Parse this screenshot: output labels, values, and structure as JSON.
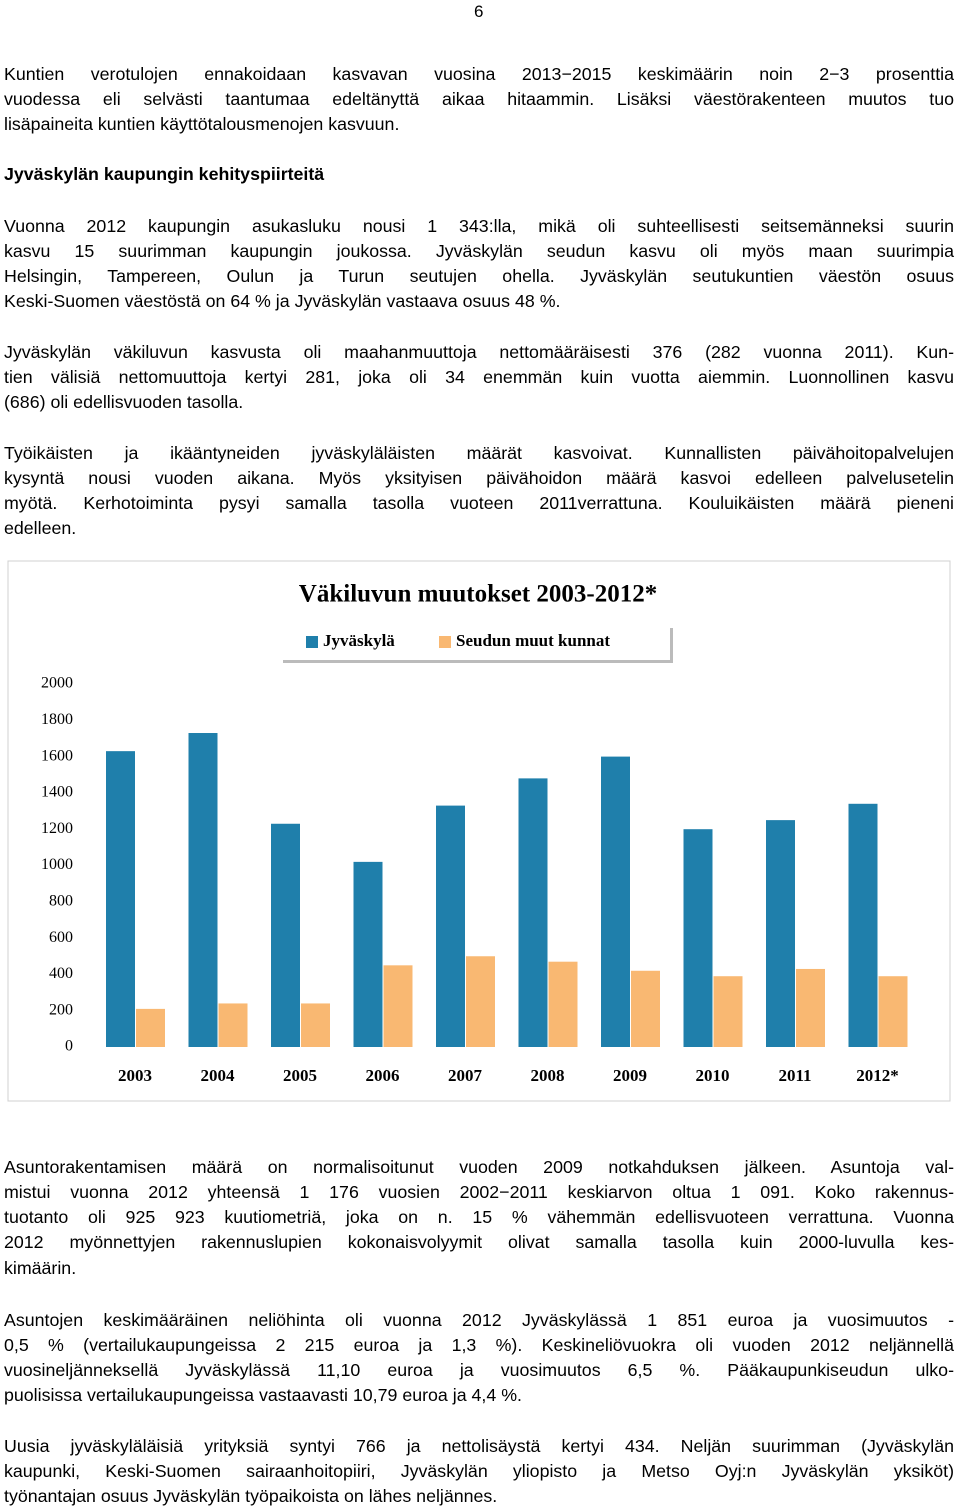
{
  "page_number": "6",
  "heading": "Jyväskylän kaupungin kehityspiirteitä",
  "paragraphs": [
    {
      "lines": [
        "Kuntien verotulojen ennakoidaan kasvavan vuosina 2013−2015 keskimäärin noin 2−3 prosenttia",
        "vuodessa eli selvästi taantumaa edeltänyttä aikaa hitaammin. Lisäksi väestörakenteen muutos tuo",
        "lisäpaineita kuntien käyttötalousmenojen kasvuun."
      ]
    },
    {
      "lines": [
        "Vuonna 2012 kaupungin asukasluku nousi 1 343:lla, mikä oli suhteellisesti seitsemänneksi suurin",
        "kasvu 15 suurimman kaupungin joukossa. Jyväskylän seudun kasvu oli myös maan suurimpia",
        "Helsingin, Tampereen, Oulun ja Turun seutujen ohella. Jyväskylän seutukuntien väestön osuus",
        "Keski-Suomen väestöstä on 64 % ja Jyväskylän vastaava osuus 48 %."
      ]
    },
    {
      "lines": [
        "Jyväskylän väkiluvun kasvusta oli maahanmuuttoja nettomääräisesti 376 (282 vuonna 2011). Kun-",
        "tien välisiä nettomuuttoja kertyi 281, joka oli 34 enemmän kuin vuotta aiemmin. Luonnollinen kasvu",
        "(686) oli edellisvuoden tasolla."
      ]
    },
    {
      "lines": [
        "Työikäisten ja ikääntyneiden jyväskyläläisten määrät kasvoivat. Kunnallisten päivähoitopalvelujen",
        "kysyntä nousi vuoden aikana. Myös yksityisen päivähoidon määrä kasvoi edelleen palvelusetelin",
        "myötä. Kerhotoiminta pysyi samalla tasolla vuoteen 2011verrattuna. Kouluikäisten määrä pieneni",
        "edelleen."
      ]
    },
    {
      "lines": [
        "Asuntorakentamisen määrä on normalisoitunut vuoden 2009 notkahduksen jälkeen. Asuntoja val-",
        "mistui vuonna 2012 yhteensä 1 176 vuosien 2002−2011 keskiarvon oltua 1 091. Koko rakennus-",
        "tuotanto oli 925 923 kuutiometriä, joka on n. 15 % vähemmän edellisvuoteen verrattuna. Vuonna",
        "2012 myönnettyjen rakennuslupien kokonaisvolyymit olivat samalla tasolla kuin 2000-luvulla kes-",
        "kimäärin."
      ]
    },
    {
      "lines": [
        "Asuntojen keskimääräinen neliöhinta oli vuonna 2012 Jyväskylässä 1 851 euroa ja vuosimuutos -",
        "0,5 % (vertailukaupungeissa 2 215 euroa ja 1,3 %). Keskineliövuokra oli vuoden 2012 neljännellä",
        "vuosineljänneksellä Jyväskylässä 11,10 euroa ja vuosimuutos 6,5 %. Pääkaupunkiseudun ulko-",
        "puolisissa vertailukaupungeissa vastaavasti 10,79 euroa ja 4,4 %."
      ]
    },
    {
      "lines": [
        "Uusia jyväskyläläisiä yrityksiä syntyi 766 ja nettolisäystä kertyi 434. Neljän suurimman (Jyväskylän",
        "kaupunki, Keski-Suomen sairaanhoitopiiri, Jyväskylän yliopisto ja Metso Oyj:n Jyväskylän yksiköt)",
        "työnantajan osuus Jyväskylän työpaikoista on lähes neljännes."
      ]
    }
  ],
  "chart_data": {
    "type": "bar",
    "title": "Väkiluvun muutokset 2003-2012*",
    "categories": [
      "2003",
      "2004",
      "2005",
      "2006",
      "2007",
      "2008",
      "2009",
      "2010",
      "2011",
      "2012*"
    ],
    "series": [
      {
        "name": "Jyväskylä",
        "color": "#1f7fab",
        "values": [
          1630,
          1730,
          1230,
          1020,
          1330,
          1480,
          1600,
          1200,
          1250,
          1340
        ]
      },
      {
        "name": "Seudun muut kunnat",
        "color": "#f9b872",
        "values": [
          210,
          240,
          240,
          450,
          500,
          470,
          420,
          390,
          430,
          390
        ]
      }
    ],
    "ylim": [
      0,
      2000
    ],
    "yticks": [
      0,
      200,
      400,
      600,
      800,
      1000,
      1200,
      1400,
      1600,
      1800,
      2000
    ],
    "grid": false
  }
}
